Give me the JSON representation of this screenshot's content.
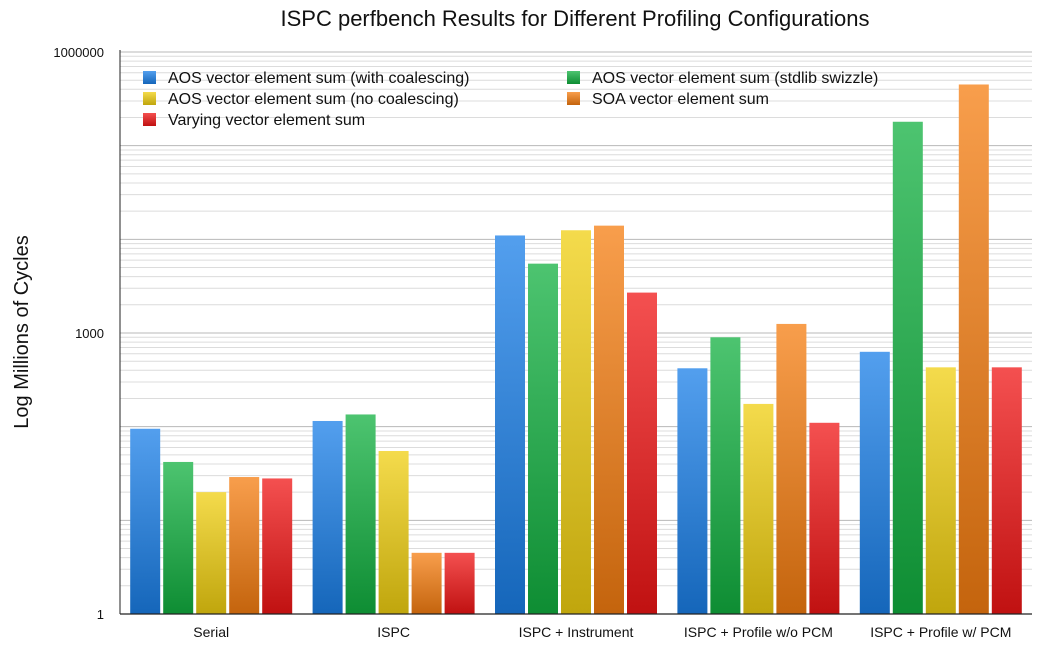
{
  "chart_data": {
    "type": "bar",
    "title": "ISPC perfbench Results for Different Profiling Configurations",
    "xlabel": "",
    "ylabel": "Log Millions of Cycles",
    "yscale": "log",
    "ylim": [
      1,
      1000000
    ],
    "yticks": [
      {
        "value": 1,
        "label": "1"
      },
      {
        "value": 1000,
        "label": "1000"
      },
      {
        "value": 1000000,
        "label": "1000000"
      }
    ],
    "grid": true,
    "legend_position": "top-left",
    "categories": [
      "Serial",
      "ISPC",
      "ISPC + Instrument",
      "ISPC + Profile w/o PCM",
      "ISPC + Profile w/ PCM"
    ],
    "series": [
      {
        "name": "AOS vector element sum (with coalescing)",
        "color": "#1a7fe8",
        "values": [
          95,
          115,
          11000,
          420,
          630
        ]
      },
      {
        "name": "AOS vector element sum (stdlib swizzle)",
        "color": "#12b040",
        "values": [
          42,
          135,
          5500,
          900,
          180000
        ]
      },
      {
        "name": "AOS vector element sum (no coalescing)",
        "color": "#f0cf10",
        "values": [
          20,
          55,
          12500,
          175,
          430
        ]
      },
      {
        "name": "SOA vector element sum",
        "color": "#f57d10",
        "values": [
          29,
          4.5,
          14000,
          1250,
          450000
        ]
      },
      {
        "name": "Varying vector element sum",
        "color": "#f01515",
        "values": [
          28,
          4.5,
          2700,
          110,
          430
        ]
      }
    ]
  }
}
